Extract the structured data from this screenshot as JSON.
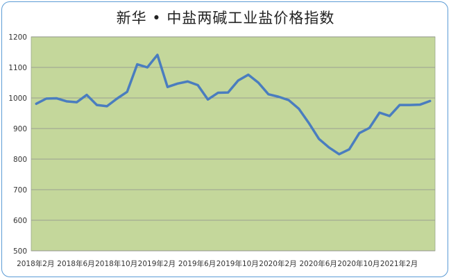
{
  "chart_data": {
    "type": "line",
    "title": "新华 • 中盐两碱工业盐价格指数",
    "xlabel": "",
    "ylabel": "",
    "ylim": [
      500,
      1200
    ],
    "yticks": [
      "500",
      "600",
      "700",
      "800",
      "900",
      "1000",
      "1100",
      "1200"
    ],
    "xtick_labels": [
      "2018年2月",
      "2018年6月",
      "2018年10月",
      "2019年2月",
      "2019年6月",
      "2019年10月",
      "2020年2月",
      "2020年6月",
      "2020年10月",
      "2021年2月"
    ],
    "grid": true,
    "plot_background": "#c4d79b",
    "line_color": "#4a7dbf",
    "values": [
      981,
      998,
      999,
      989,
      986,
      1010,
      977,
      973,
      998,
      1020,
      1110,
      1100,
      1141,
      1036,
      1047,
      1054,
      1042,
      995,
      1017,
      1018,
      1057,
      1076,
      1050,
      1012,
      1004,
      993,
      965,
      918,
      866,
      838,
      816,
      832,
      885,
      902,
      952,
      941,
      977,
      977,
      978,
      990
    ]
  }
}
